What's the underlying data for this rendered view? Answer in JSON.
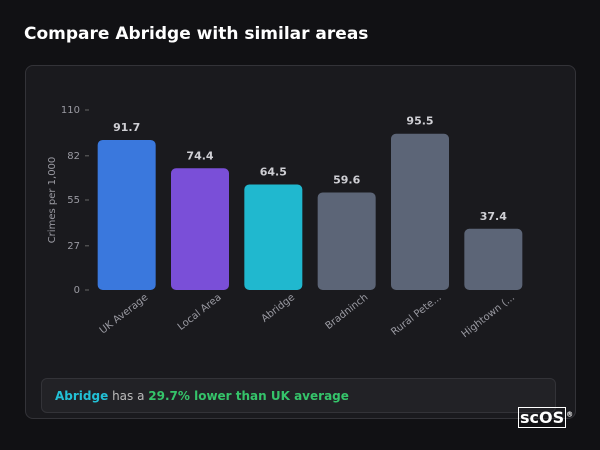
{
  "chart_data": {
    "type": "bar",
    "title": "Compare Abridge with similar areas",
    "ylabel": "Crimes per 1,000",
    "categories": [
      "UK Average",
      "Local Area",
      "Abridge",
      "Bradninch",
      "Rural Pete...",
      "Hightown (..."
    ],
    "values": [
      91.7,
      74.4,
      64.5,
      59.6,
      95.5,
      37.4
    ],
    "colors": [
      "#3a78dd",
      "#7a4fd8",
      "#20b8cf",
      "#5c6577",
      "#5c6577",
      "#5c6577"
    ],
    "ylim": [
      0,
      110
    ],
    "yticks": [
      0,
      27,
      55,
      82,
      110
    ],
    "grid": false
  },
  "summary": {
    "area": "Abridge",
    "middle": "has a",
    "comparison": "29.7% lower than UK average"
  },
  "logo": {
    "text": "scOS",
    "mark": "®"
  }
}
